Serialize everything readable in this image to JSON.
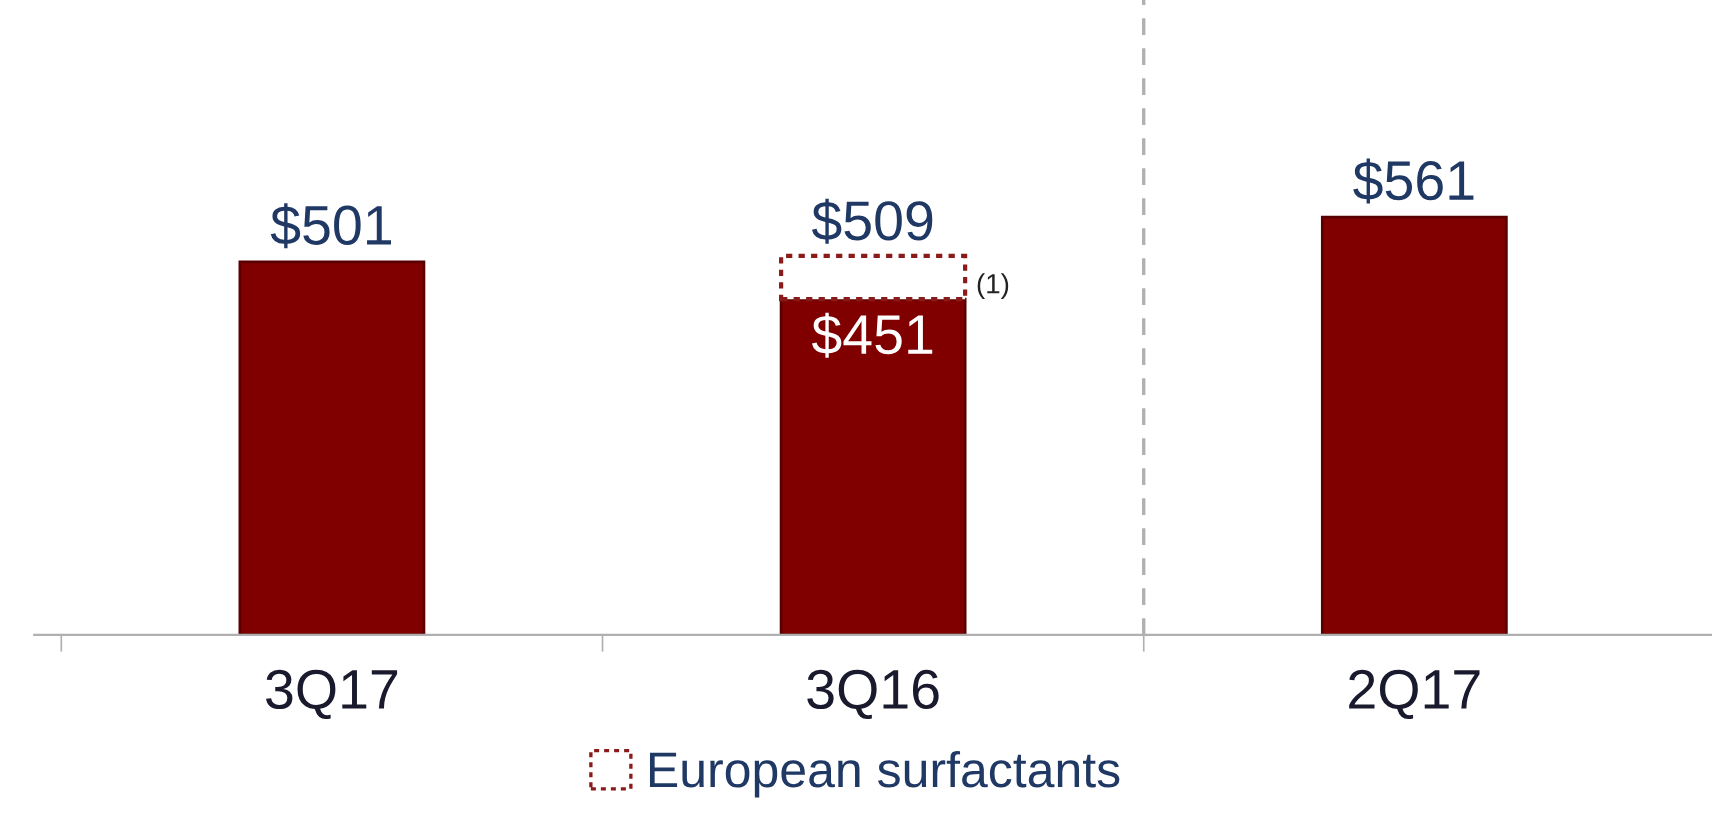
{
  "chart_data": {
    "type": "bar",
    "stacked": true,
    "categories": [
      "3Q17",
      "3Q16",
      "2Q17"
    ],
    "series": [
      {
        "color": "#800000",
        "values": [
          501,
          451,
          561
        ],
        "value_labels": [
          "$501",
          "$451",
          "$561"
        ]
      },
      {
        "name": "European surfactants",
        "color": "#8b1a1a",
        "values": [
          null,
          58,
          null
        ],
        "line_style": "dotted"
      }
    ],
    "totals": [
      null,
      "$509",
      null
    ],
    "annotations": [
      "(1)"
    ],
    "legend": "bottom",
    "grid": false
  }
}
